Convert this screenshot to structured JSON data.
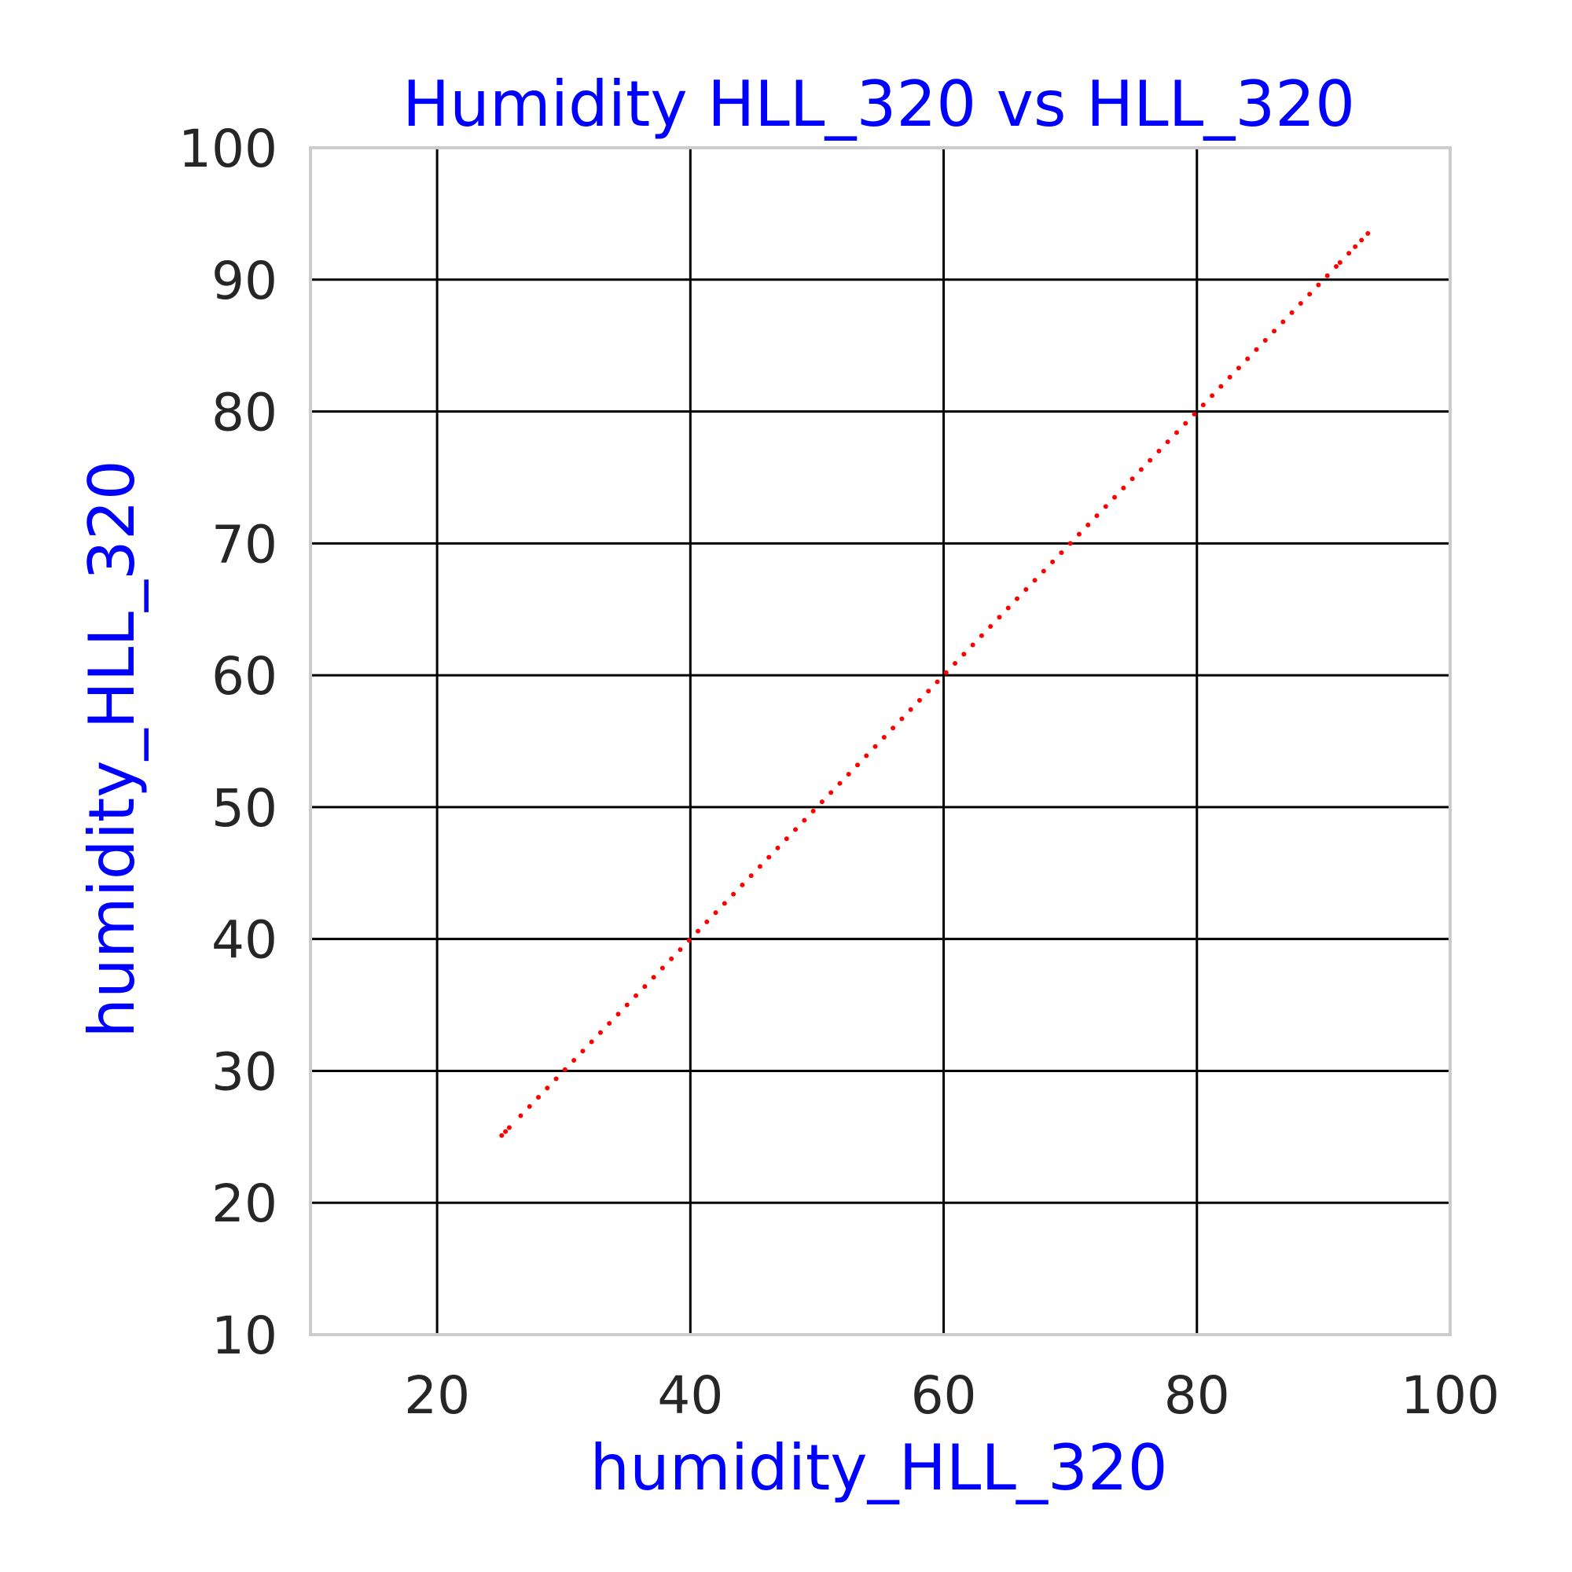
{
  "chart_data": {
    "type": "scatter",
    "title": "Humidity HLL_320 vs HLL_320",
    "xlabel": "humidity_HLL_320",
    "ylabel": "humidity_HLL_320",
    "xlim": [
      10,
      100
    ],
    "ylim": [
      10,
      100
    ],
    "xticks": [
      "20",
      "40",
      "60",
      "80",
      "100"
    ],
    "yticks": [
      "10",
      "20",
      "30",
      "40",
      "50",
      "60",
      "70",
      "80",
      "90",
      "100"
    ],
    "grid": true,
    "legend": "none",
    "series": [
      {
        "color": "#ff0000",
        "points": [
          [
            25.1,
            25.1
          ],
          [
            25.4,
            25.4
          ],
          [
            25.7,
            25.7
          ],
          [
            26.6,
            26.6
          ],
          [
            27.3,
            27.3
          ],
          [
            28.0,
            28.0
          ],
          [
            28.7,
            28.7
          ],
          [
            29.4,
            29.4
          ],
          [
            30.1,
            30.1
          ],
          [
            30.8,
            30.8
          ],
          [
            31.5,
            31.5
          ],
          [
            32.2,
            32.2
          ],
          [
            32.9,
            32.9
          ],
          [
            33.6,
            33.6
          ],
          [
            34.3,
            34.3
          ],
          [
            35.0,
            35.0
          ],
          [
            35.7,
            35.7
          ],
          [
            36.4,
            36.4
          ],
          [
            37.1,
            37.1
          ],
          [
            37.8,
            37.8
          ],
          [
            38.5,
            38.5
          ],
          [
            39.2,
            39.2
          ],
          [
            39.9,
            39.9
          ],
          [
            40.6,
            40.6
          ],
          [
            41.3,
            41.3
          ],
          [
            42.0,
            42.0
          ],
          [
            42.7,
            42.7
          ],
          [
            43.4,
            43.4
          ],
          [
            44.1,
            44.1
          ],
          [
            44.8,
            44.8
          ],
          [
            45.5,
            45.5
          ],
          [
            46.2,
            46.2
          ],
          [
            46.9,
            46.9
          ],
          [
            47.6,
            47.6
          ],
          [
            48.3,
            48.3
          ],
          [
            49.0,
            49.0
          ],
          [
            49.7,
            49.7
          ],
          [
            50.4,
            50.4
          ],
          [
            51.1,
            51.1
          ],
          [
            51.8,
            51.8
          ],
          [
            52.5,
            52.5
          ],
          [
            53.2,
            53.2
          ],
          [
            53.9,
            53.9
          ],
          [
            54.6,
            54.6
          ],
          [
            55.3,
            55.3
          ],
          [
            56.0,
            56.0
          ],
          [
            56.7,
            56.7
          ],
          [
            57.4,
            57.4
          ],
          [
            58.1,
            58.1
          ],
          [
            58.8,
            58.8
          ],
          [
            59.5,
            59.5
          ],
          [
            60.2,
            60.2
          ],
          [
            60.9,
            60.9
          ],
          [
            61.6,
            61.6
          ],
          [
            62.3,
            62.3
          ],
          [
            63.0,
            63.0
          ],
          [
            63.7,
            63.7
          ],
          [
            64.4,
            64.4
          ],
          [
            65.1,
            65.1
          ],
          [
            65.8,
            65.8
          ],
          [
            66.5,
            66.5
          ],
          [
            67.2,
            67.2
          ],
          [
            67.9,
            67.9
          ],
          [
            68.6,
            68.6
          ],
          [
            69.3,
            69.3
          ],
          [
            70.0,
            70.0
          ],
          [
            70.7,
            70.7
          ],
          [
            71.4,
            71.4
          ],
          [
            72.1,
            72.1
          ],
          [
            72.8,
            72.8
          ],
          [
            73.5,
            73.5
          ],
          [
            74.2,
            74.2
          ],
          [
            74.9,
            74.9
          ],
          [
            75.6,
            75.6
          ],
          [
            76.3,
            76.3
          ],
          [
            77.0,
            77.0
          ],
          [
            77.7,
            77.7
          ],
          [
            78.4,
            78.4
          ],
          [
            79.1,
            79.1
          ],
          [
            79.8,
            79.8
          ],
          [
            80.5,
            80.5
          ],
          [
            81.2,
            81.2
          ],
          [
            81.9,
            81.9
          ],
          [
            82.6,
            82.6
          ],
          [
            83.3,
            83.3
          ],
          [
            84.0,
            84.0
          ],
          [
            84.7,
            84.7
          ],
          [
            85.4,
            85.4
          ],
          [
            86.1,
            86.1
          ],
          [
            86.8,
            86.8
          ],
          [
            87.5,
            87.5
          ],
          [
            88.2,
            88.2
          ],
          [
            88.9,
            88.9
          ],
          [
            89.6,
            89.6
          ],
          [
            90.3,
            90.3
          ],
          [
            91.0,
            91.0
          ],
          [
            91.3,
            91.3
          ],
          [
            92.0,
            92.0
          ],
          [
            92.5,
            92.5
          ],
          [
            93.0,
            93.0
          ],
          [
            93.5,
            93.5
          ]
        ]
      }
    ]
  }
}
